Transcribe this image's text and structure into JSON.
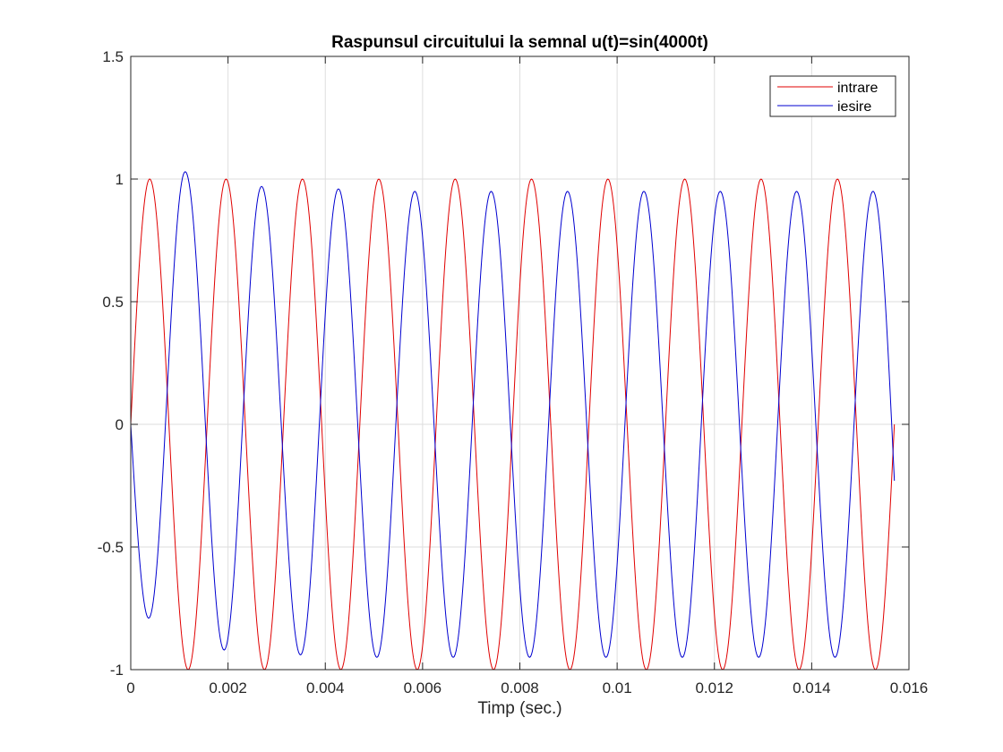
{
  "chart_data": {
    "type": "line",
    "title": "Raspunsul circuitului la semnal u(t)=sin(4000t)",
    "xlabel": "Timp (sec.)",
    "ylabel": "",
    "xlim": [
      0,
      0.016
    ],
    "ylim": [
      -1,
      1.5
    ],
    "xticks": [
      0,
      0.002,
      0.004,
      0.006,
      0.008,
      0.01,
      0.012,
      0.014,
      0.016
    ],
    "xtick_labels": [
      "0",
      "0.002",
      "0.004",
      "0.006",
      "0.008",
      "0.01",
      "0.012",
      "0.014",
      "0.016"
    ],
    "yticks": [
      -1,
      -0.5,
      0,
      0.5,
      1,
      1.5
    ],
    "ytick_labels": [
      "-1",
      "-0.5",
      "0",
      "0.5",
      "1",
      "1.5"
    ],
    "grid": true,
    "legend_position": "top-right",
    "x_end": 0.0157,
    "series": [
      {
        "name": "intrare",
        "color": "#e00000",
        "formula": "sin(4000t)",
        "x": [
          0,
          0.00039,
          0.00118,
          0.00196,
          0.00275,
          0.00353,
          0.00432,
          0.0051,
          0.00589,
          0.00667,
          0.00746,
          0.00824,
          0.00903,
          0.00981,
          0.0106,
          0.01139,
          0.01217,
          0.01296,
          0.01374,
          0.01453,
          0.01531,
          0.0157
        ],
        "y": [
          0,
          1,
          -1,
          1,
          -1,
          1,
          -1,
          1,
          -1,
          1,
          -1,
          1,
          -1,
          1,
          -1,
          1,
          -1,
          1,
          -1,
          1,
          -1,
          0
        ]
      },
      {
        "name": "iesire",
        "color": "#0000d0",
        "x": [
          0,
          0.00037,
          0.00112,
          0.00192,
          0.00269,
          0.00349,
          0.00427,
          0.00506,
          0.00584,
          0.00663,
          0.00741,
          0.0082,
          0.00898,
          0.00977,
          0.01055,
          0.01134,
          0.01212,
          0.01291,
          0.01369,
          0.01448,
          0.01526,
          0.0157
        ],
        "y": [
          0,
          -0.79,
          1.03,
          -0.92,
          0.97,
          -0.94,
          0.96,
          -0.95,
          0.95,
          -0.95,
          0.95,
          -0.95,
          0.95,
          -0.95,
          0.95,
          -0.95,
          0.95,
          -0.95,
          0.95,
          -0.95,
          0.95,
          -0.23
        ]
      }
    ]
  }
}
